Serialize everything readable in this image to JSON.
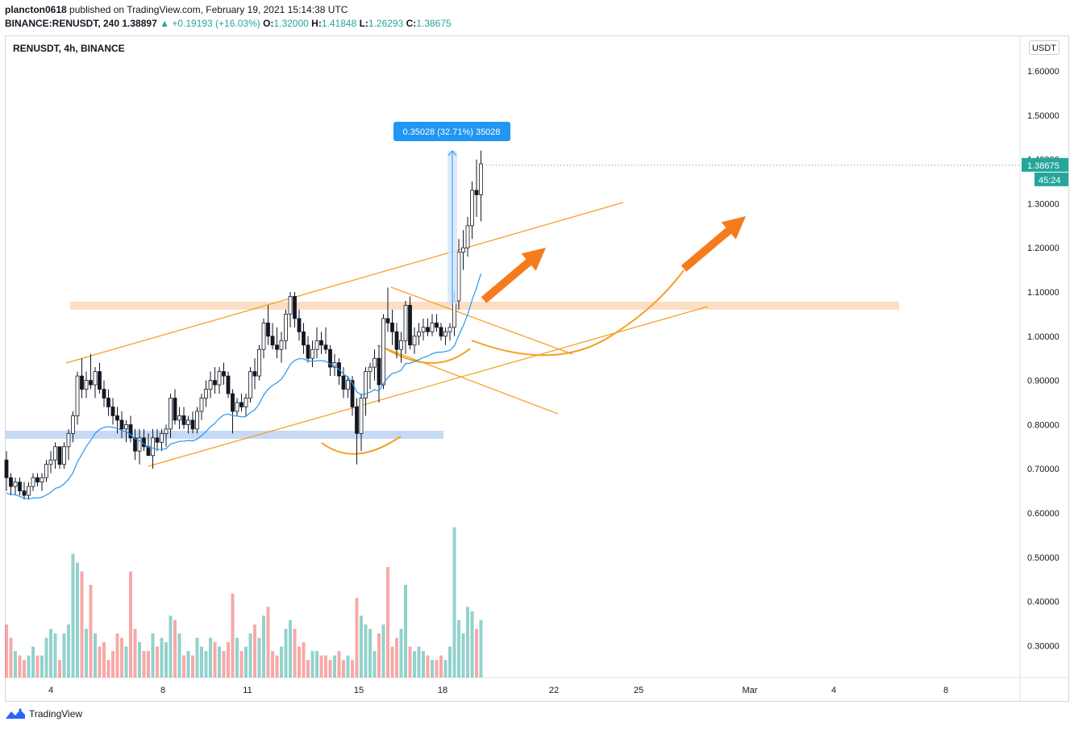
{
  "header": {
    "author": "plancton0618",
    "published_text": "published on TradingView.com, February 19, 2021 15:14:38 UTC",
    "symbol": "BINANCE:RENUSDT, 240",
    "price": "1.38897",
    "change": "▲ +0.19193 (+16.03%)",
    "o_label": "O:",
    "o_value": "1.32000",
    "h_label": "H:",
    "h_value": "1.41848",
    "l_label": "L:",
    "l_value": "1.26293",
    "c_label": "C:",
    "c_value": "1.38675"
  },
  "pane": {
    "symbol_label": "RENUSDT, 4h, BINANCE",
    "currency_button": "USDT",
    "last_price": "1.38675",
    "countdown": "45:24",
    "measure_label": "0.35028 (32.71%) 35028"
  },
  "footer": {
    "brand": "TradingView",
    "logo_icon": "tradingview-logo-icon"
  },
  "colors": {
    "up": "#26a69a",
    "down": "#ef5350",
    "ema": "#2196f3",
    "trend": "#f59c1a",
    "arrow": "#f57c1e",
    "support": "#bcd4f5",
    "resistance": "#fad8b8"
  },
  "chart_data": {
    "type": "candlestick",
    "timeframe": "4h",
    "ylim": [
      0.27,
      1.67
    ],
    "y_ticks": [
      "1.60000",
      "1.50000",
      "1.40000",
      "1.30000",
      "1.20000",
      "1.10000",
      "1.00000",
      "0.90000",
      "0.80000",
      "0.70000",
      "0.60000",
      "0.50000",
      "0.40000",
      "0.30000"
    ],
    "x_ticks": [
      "4",
      "8",
      "11",
      "15",
      "18",
      "22",
      "25",
      "Mar",
      "4",
      "8"
    ],
    "candles": [
      [
        0.72,
        0.74,
        0.65,
        0.68
      ],
      [
        0.68,
        0.69,
        0.64,
        0.66
      ],
      [
        0.66,
        0.68,
        0.64,
        0.67
      ],
      [
        0.67,
        0.68,
        0.64,
        0.65
      ],
      [
        0.65,
        0.67,
        0.63,
        0.64
      ],
      [
        0.64,
        0.67,
        0.63,
        0.66
      ],
      [
        0.66,
        0.69,
        0.65,
        0.68
      ],
      [
        0.68,
        0.69,
        0.66,
        0.67
      ],
      [
        0.67,
        0.69,
        0.65,
        0.68
      ],
      [
        0.68,
        0.72,
        0.67,
        0.71
      ],
      [
        0.71,
        0.74,
        0.69,
        0.72
      ],
      [
        0.72,
        0.76,
        0.7,
        0.75
      ],
      [
        0.75,
        0.74,
        0.7,
        0.71
      ],
      [
        0.71,
        0.76,
        0.7,
        0.75
      ],
      [
        0.75,
        0.79,
        0.72,
        0.78
      ],
      [
        0.78,
        0.83,
        0.76,
        0.82
      ],
      [
        0.82,
        0.92,
        0.8,
        0.91
      ],
      [
        0.91,
        0.95,
        0.86,
        0.88
      ],
      [
        0.88,
        0.92,
        0.86,
        0.9
      ],
      [
        0.9,
        0.96,
        0.88,
        0.89
      ],
      [
        0.89,
        0.93,
        0.86,
        0.92
      ],
      [
        0.92,
        0.94,
        0.87,
        0.88
      ],
      [
        0.88,
        0.9,
        0.84,
        0.86
      ],
      [
        0.86,
        0.88,
        0.82,
        0.84
      ],
      [
        0.84,
        0.86,
        0.8,
        0.82
      ],
      [
        0.82,
        0.84,
        0.78,
        0.81
      ],
      [
        0.81,
        0.83,
        0.77,
        0.79
      ],
      [
        0.79,
        0.81,
        0.76,
        0.8
      ],
      [
        0.8,
        0.82,
        0.76,
        0.77
      ],
      [
        0.77,
        0.79,
        0.72,
        0.74
      ],
      [
        0.74,
        0.79,
        0.71,
        0.77
      ],
      [
        0.77,
        0.79,
        0.74,
        0.75
      ],
      [
        0.75,
        0.78,
        0.73,
        0.73
      ],
      [
        0.73,
        0.79,
        0.7,
        0.77
      ],
      [
        0.77,
        0.79,
        0.74,
        0.76
      ],
      [
        0.76,
        0.79,
        0.74,
        0.78
      ],
      [
        0.78,
        0.8,
        0.75,
        0.79
      ],
      [
        0.79,
        0.87,
        0.77,
        0.86
      ],
      [
        0.86,
        0.88,
        0.8,
        0.81
      ],
      [
        0.81,
        0.84,
        0.79,
        0.82
      ],
      [
        0.82,
        0.84,
        0.79,
        0.8
      ],
      [
        0.8,
        0.82,
        0.78,
        0.81
      ],
      [
        0.81,
        0.83,
        0.78,
        0.79
      ],
      [
        0.79,
        0.84,
        0.78,
        0.83
      ],
      [
        0.83,
        0.87,
        0.81,
        0.86
      ],
      [
        0.86,
        0.9,
        0.84,
        0.88
      ],
      [
        0.88,
        0.92,
        0.86,
        0.9
      ],
      [
        0.9,
        0.93,
        0.87,
        0.89
      ],
      [
        0.89,
        0.93,
        0.87,
        0.92
      ],
      [
        0.92,
        0.94,
        0.89,
        0.91
      ],
      [
        0.91,
        0.92,
        0.86,
        0.87
      ],
      [
        0.87,
        0.88,
        0.78,
        0.83
      ],
      [
        0.83,
        0.86,
        0.82,
        0.85
      ],
      [
        0.85,
        0.87,
        0.83,
        0.84
      ],
      [
        0.84,
        0.87,
        0.82,
        0.86
      ],
      [
        0.86,
        0.93,
        0.85,
        0.92
      ],
      [
        0.92,
        0.95,
        0.88,
        0.91
      ],
      [
        0.91,
        0.98,
        0.9,
        0.97
      ],
      [
        0.97,
        1.04,
        0.95,
        1.03
      ],
      [
        1.03,
        1.07,
        0.98,
        1.0
      ],
      [
        1.0,
        1.03,
        0.97,
        0.98
      ],
      [
        0.98,
        1.02,
        0.95,
        0.97
      ],
      [
        0.97,
        1.01,
        0.94,
        0.99
      ],
      [
        0.99,
        1.06,
        0.97,
        1.05
      ],
      [
        1.05,
        1.1,
        1.02,
        1.09
      ],
      [
        1.09,
        1.1,
        1.02,
        1.04
      ],
      [
        1.04,
        1.06,
        0.99,
        1.01
      ],
      [
        1.01,
        1.03,
        0.96,
        0.98
      ],
      [
        0.98,
        1.0,
        0.94,
        0.95
      ],
      [
        0.95,
        0.99,
        0.93,
        0.97
      ],
      [
        0.97,
        1.02,
        0.95,
        0.99
      ],
      [
        0.99,
        1.01,
        0.96,
        0.98
      ],
      [
        0.98,
        1.02,
        0.96,
        0.97
      ],
      [
        0.97,
        0.98,
        0.91,
        0.93
      ],
      [
        0.93,
        0.96,
        0.91,
        0.94
      ],
      [
        0.94,
        0.95,
        0.89,
        0.91
      ],
      [
        0.91,
        0.93,
        0.86,
        0.88
      ],
      [
        0.88,
        0.91,
        0.86,
        0.9
      ],
      [
        0.9,
        0.91,
        0.82,
        0.84
      ],
      [
        0.84,
        0.86,
        0.71,
        0.78
      ],
      [
        0.78,
        0.87,
        0.74,
        0.86
      ],
      [
        0.86,
        0.93,
        0.82,
        0.92
      ],
      [
        0.92,
        0.94,
        0.88,
        0.93
      ],
      [
        0.93,
        0.97,
        0.9,
        0.95
      ],
      [
        0.95,
        0.98,
        0.85,
        0.89
      ],
      [
        0.89,
        1.05,
        0.88,
        1.04
      ],
      [
        1.04,
        1.11,
        1.01,
        1.03
      ],
      [
        1.03,
        1.06,
        0.98,
        1.01
      ],
      [
        1.01,
        1.03,
        0.95,
        0.97
      ],
      [
        0.97,
        1.01,
        0.94,
        0.99
      ],
      [
        0.99,
        1.08,
        0.96,
        1.07
      ],
      [
        1.07,
        1.09,
        0.97,
        0.98
      ],
      [
        0.98,
        1.02,
        0.96,
        1.0
      ],
      [
        1.0,
        1.03,
        0.98,
        1.01
      ],
      [
        1.01,
        1.04,
        0.99,
        1.02
      ],
      [
        1.02,
        1.04,
        1.0,
        1.01
      ],
      [
        1.01,
        1.05,
        1.0,
        1.03
      ],
      [
        1.03,
        1.05,
        1.01,
        1.02
      ],
      [
        1.02,
        1.03,
        0.99,
        1.0
      ],
      [
        1.0,
        1.02,
        0.98,
        1.01
      ],
      [
        1.01,
        1.03,
        0.99,
        1.02
      ],
      [
        1.02,
        1.1,
        1.0,
        1.08
      ],
      [
        1.08,
        1.22,
        1.06,
        1.19
      ],
      [
        1.19,
        1.24,
        1.15,
        1.2
      ],
      [
        1.2,
        1.27,
        1.18,
        1.25
      ],
      [
        1.25,
        1.35,
        1.22,
        1.33
      ],
      [
        1.33,
        1.4,
        1.27,
        1.32
      ],
      [
        1.32,
        1.42,
        1.26,
        1.39
      ]
    ],
    "volume_ylim": [
      0.25,
      0.65
    ],
    "volume": [
      0.37,
      0.34,
      0.31,
      0.3,
      0.29,
      0.3,
      0.32,
      0.3,
      0.3,
      0.34,
      0.36,
      0.35,
      0.29,
      0.35,
      0.37,
      0.53,
      0.51,
      0.49,
      0.36,
      0.46,
      0.35,
      0.32,
      0.33,
      0.29,
      0.31,
      0.35,
      0.34,
      0.32,
      0.49,
      0.36,
      0.33,
      0.31,
      0.31,
      0.35,
      0.32,
      0.34,
      0.33,
      0.39,
      0.38,
      0.35,
      0.3,
      0.31,
      0.3,
      0.34,
      0.32,
      0.31,
      0.34,
      0.33,
      0.32,
      0.31,
      0.33,
      0.44,
      0.34,
      0.31,
      0.32,
      0.35,
      0.37,
      0.34,
      0.39,
      0.41,
      0.31,
      0.3,
      0.32,
      0.36,
      0.38,
      0.36,
      0.32,
      0.33,
      0.29,
      0.31,
      0.31,
      0.3,
      0.3,
      0.29,
      0.3,
      0.31,
      0.29,
      0.3,
      0.29,
      0.43,
      0.39,
      0.37,
      0.36,
      0.31,
      0.35,
      0.37,
      0.5,
      0.32,
      0.34,
      0.36,
      0.46,
      0.32,
      0.31,
      0.32,
      0.31,
      0.3,
      0.29,
      0.29,
      0.3,
      0.29,
      0.32,
      0.59,
      0.38,
      0.35,
      0.41,
      0.4,
      0.36,
      0.38
    ]
  }
}
